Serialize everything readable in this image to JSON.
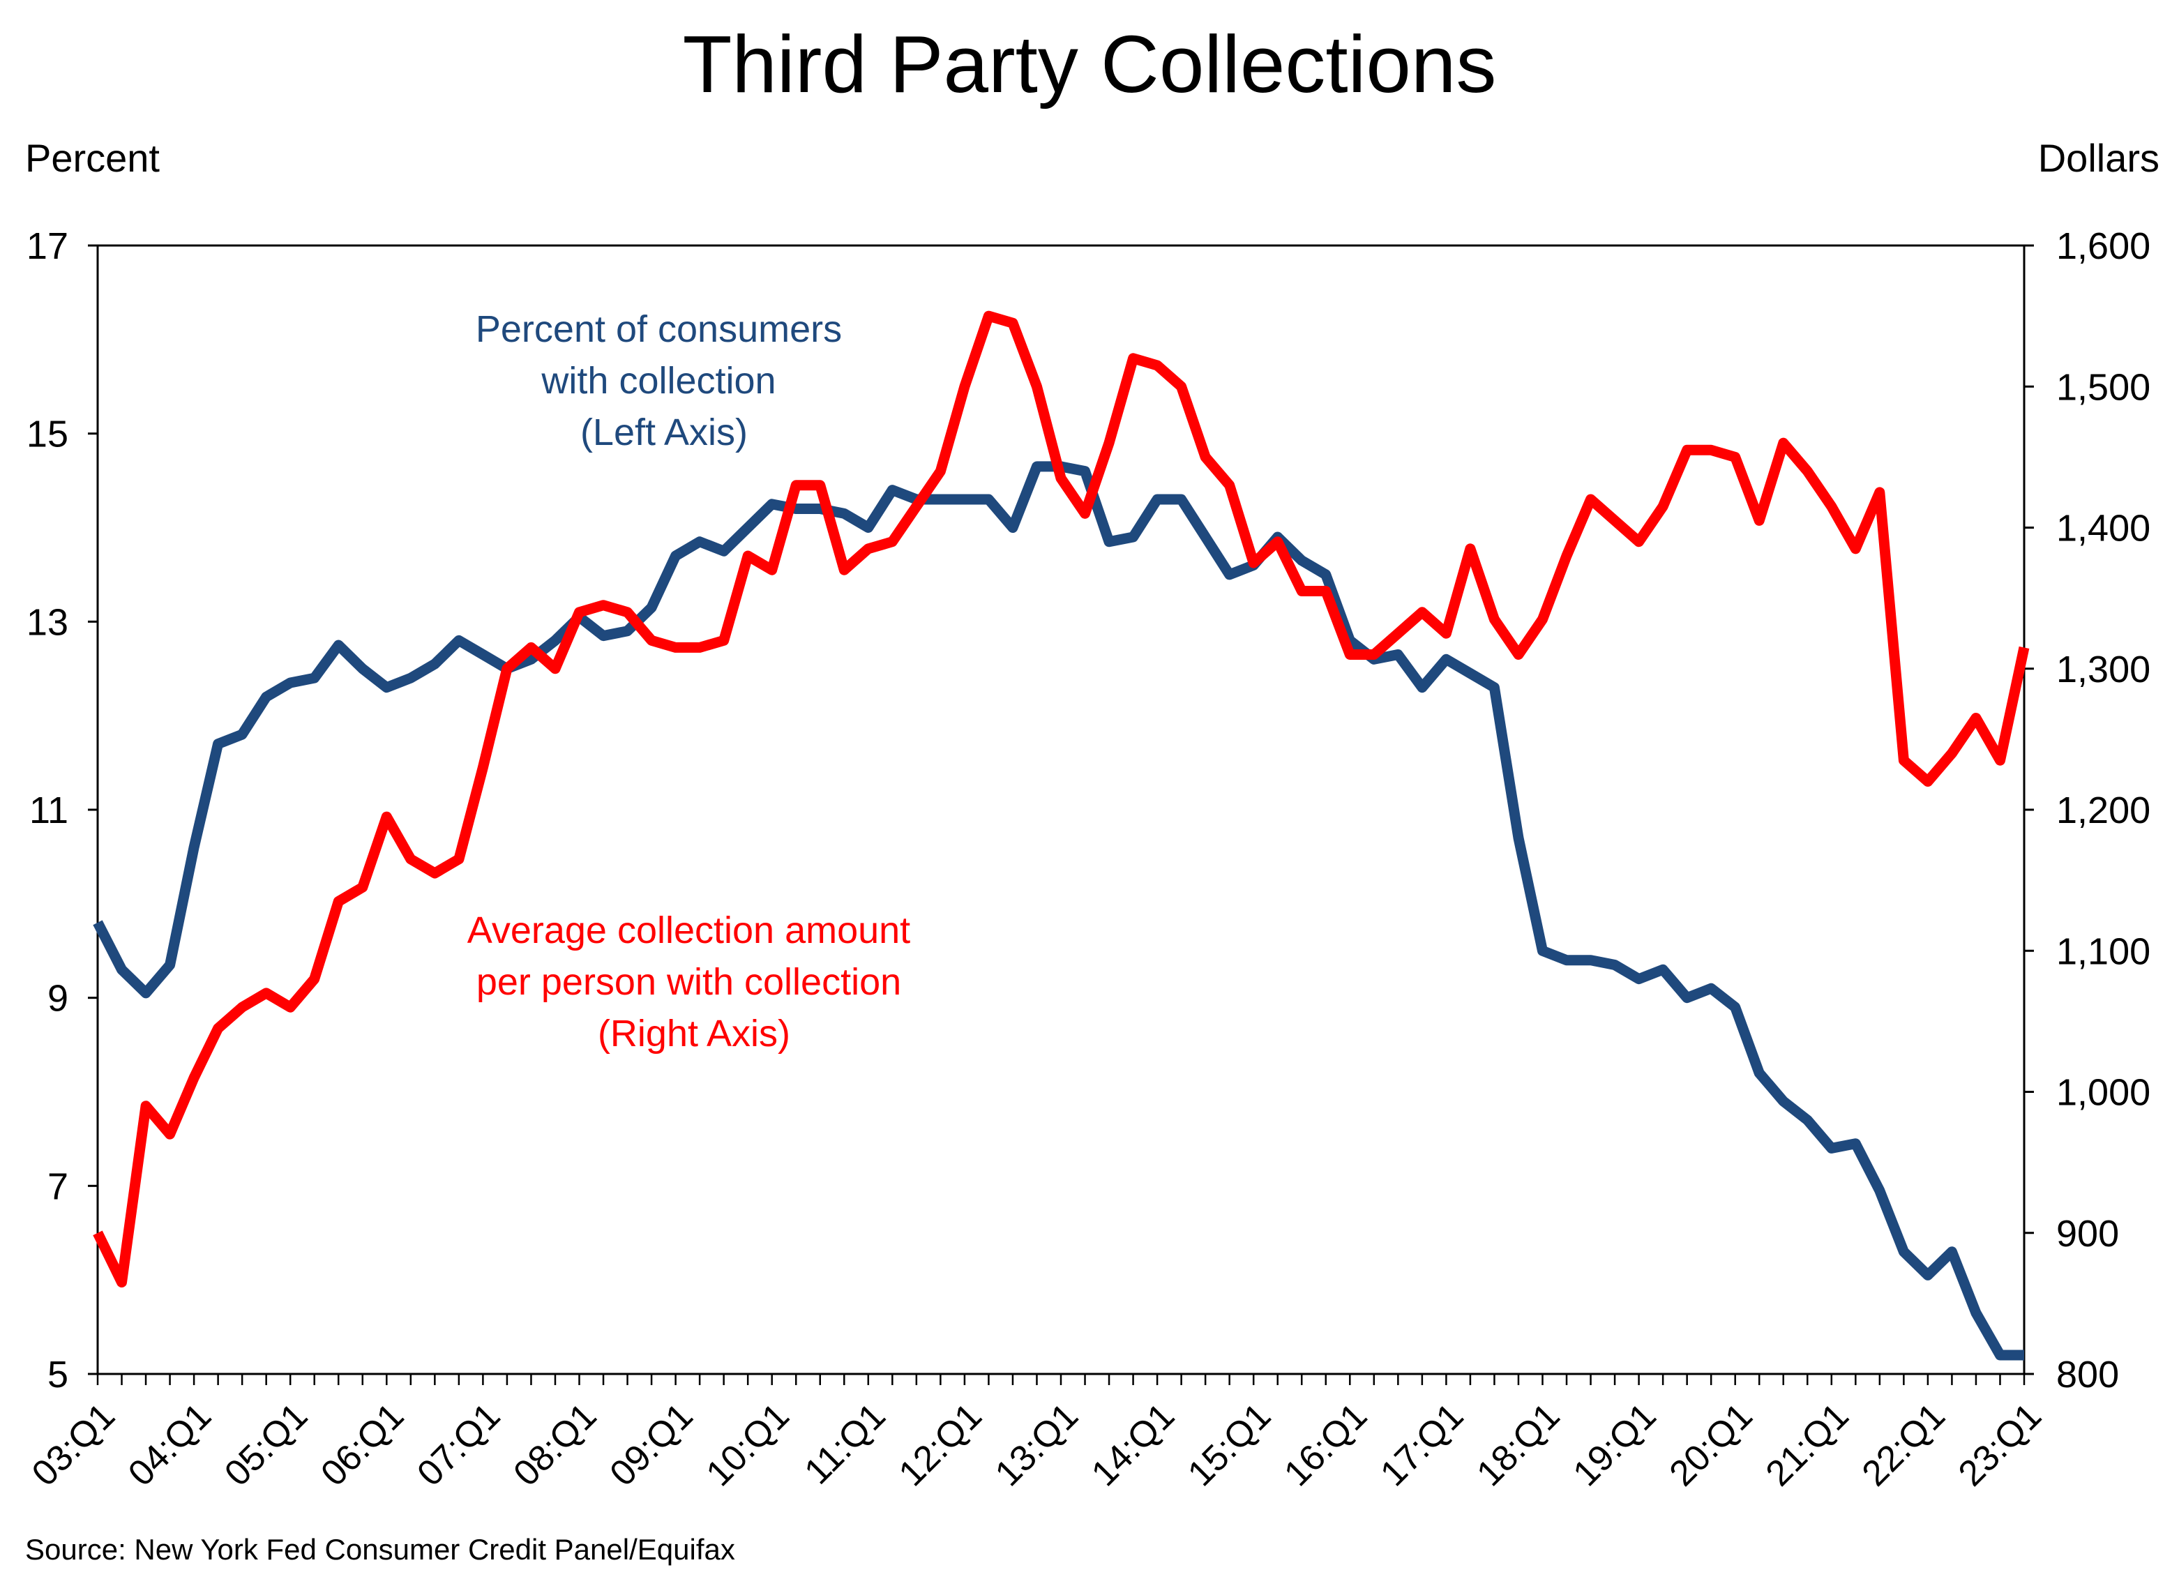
{
  "chart_data": {
    "type": "line",
    "title": "Third Party Collections",
    "left_axis": {
      "unit_label": "Percent",
      "ylim": [
        5,
        17
      ],
      "ticks": [
        "5",
        "7",
        "9",
        "11",
        "13",
        "15",
        "17"
      ]
    },
    "right_axis": {
      "unit_label": "Dollars",
      "ylim": [
        800,
        1600
      ],
      "ticks": [
        "800",
        "900",
        "1,000",
        "1,100",
        "1,200",
        "1,300",
        "1,400",
        "1,500",
        "1,600"
      ]
    },
    "x_tick_labels": [
      "03:Q1",
      "04:Q1",
      "05:Q1",
      "06:Q1",
      "07:Q1",
      "08:Q1",
      "09:Q1",
      "10:Q1",
      "11:Q1",
      "12:Q1",
      "13:Q1",
      "14:Q1",
      "15:Q1",
      "16:Q1",
      "17:Q1",
      "18:Q1",
      "19:Q1",
      "20:Q1",
      "21:Q1",
      "22:Q1",
      "23:Q1"
    ],
    "grid": false,
    "legend": "none",
    "series": [
      {
        "axis": "left",
        "color": "#1f497d",
        "annotation": [
          "Percent of consumers",
          "with collection",
          "(Left Axis)"
        ],
        "values": [
          9.8,
          9.3,
          9.05,
          9.35,
          10.6,
          11.7,
          11.8,
          12.2,
          12.35,
          12.4,
          12.75,
          12.5,
          12.3,
          12.4,
          12.55,
          12.8,
          12.65,
          12.5,
          12.6,
          12.8,
          13.05,
          12.85,
          12.9,
          13.15,
          13.7,
          13.85,
          13.75,
          14.0,
          14.25,
          14.2,
          14.2,
          14.15,
          14.0,
          14.4,
          14.3,
          14.3,
          14.3,
          14.3,
          14.0,
          14.65,
          14.65,
          14.6,
          13.85,
          13.9,
          14.3,
          14.3,
          13.9,
          13.5,
          13.6,
          13.9,
          13.65,
          13.5,
          12.8,
          12.6,
          12.65,
          12.3,
          12.6,
          12.45,
          12.3,
          10.7,
          9.5,
          9.4,
          9.4,
          9.35,
          9.2,
          9.3,
          9.0,
          9.1,
          8.9,
          8.2,
          7.9,
          7.7,
          7.4,
          7.45,
          6.95,
          6.3,
          6.05,
          6.3,
          5.65,
          5.2,
          5.2
        ]
      },
      {
        "axis": "right",
        "color": "#ff0000",
        "annotation": [
          "Average collection amount",
          "per person with collection",
          "(Right Axis)"
        ],
        "values": [
          900,
          865,
          990,
          970,
          1010,
          1045,
          1060,
          1070,
          1060,
          1080,
          1135,
          1145,
          1195,
          1165,
          1155,
          1165,
          1230,
          1300,
          1315,
          1300,
          1340,
          1345,
          1340,
          1320,
          1315,
          1315,
          1320,
          1380,
          1370,
          1430,
          1430,
          1370,
          1385,
          1390,
          1415,
          1440,
          1500,
          1550,
          1545,
          1500,
          1435,
          1410,
          1460,
          1520,
          1515,
          1500,
          1450,
          1430,
          1375,
          1390,
          1355,
          1355,
          1310,
          1310,
          1325,
          1340,
          1325,
          1385,
          1335,
          1310,
          1335,
          1380,
          1420,
          1405,
          1390,
          1415,
          1455,
          1455,
          1450,
          1405,
          1460,
          1440,
          1415,
          1385,
          1425,
          1235,
          1220,
          1240,
          1265,
          1235,
          1315
        ]
      }
    ]
  },
  "source": "Source: New York Fed Consumer Credit Panel/Equifax"
}
